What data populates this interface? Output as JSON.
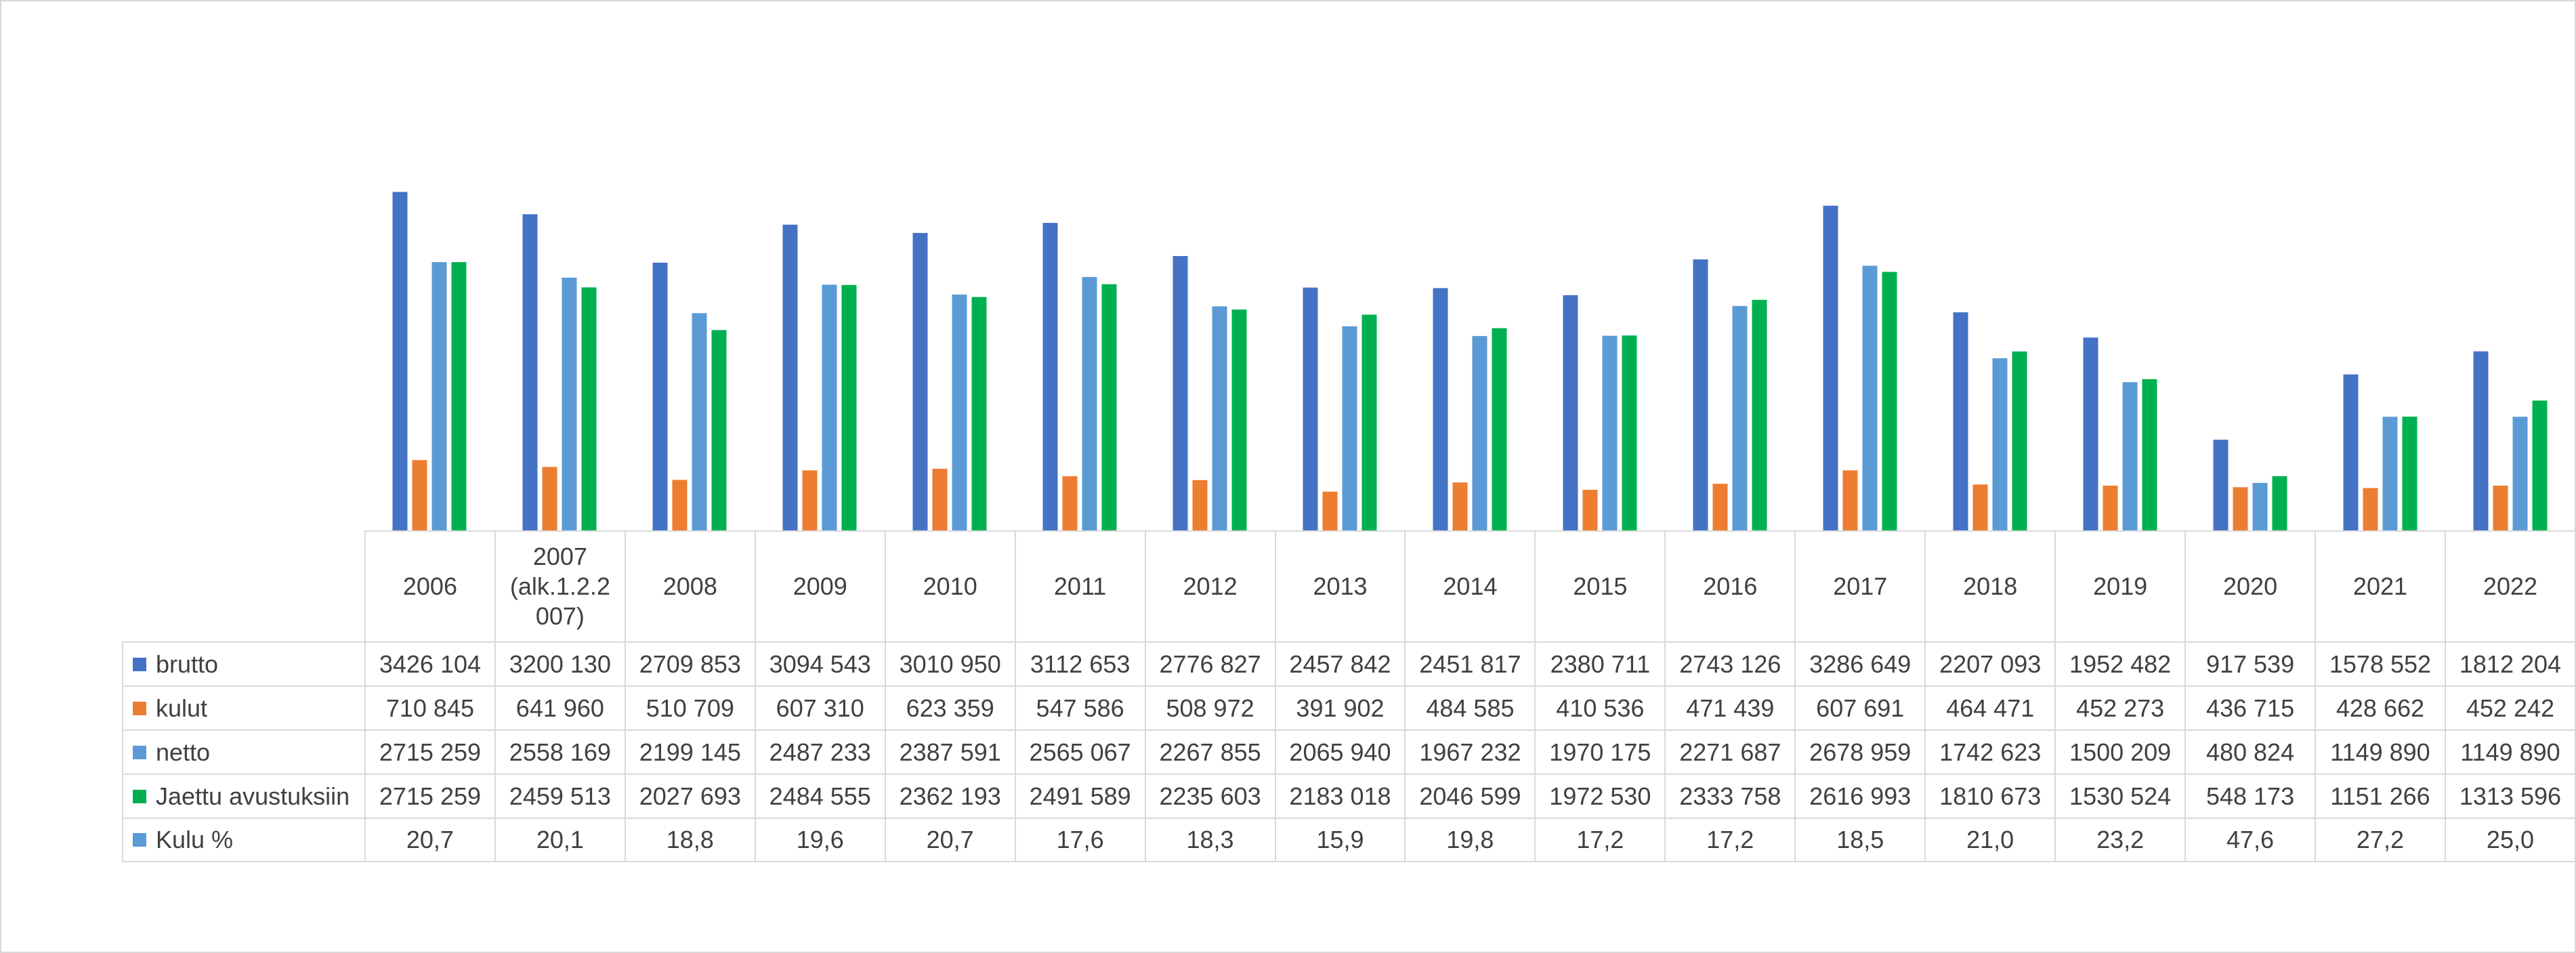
{
  "chart_data": {
    "type": "bar",
    "categories": [
      "2006",
      "2007 (alk.1.2.2007)",
      "2008",
      "2009",
      "2010",
      "2011",
      "2012",
      "2013",
      "2014",
      "2015",
      "2016",
      "2017",
      "2018",
      "2019",
      "2020",
      "2021",
      "2022"
    ],
    "category_labels": [
      "2006",
      "2007\n(alk.1.2.2\n007)",
      "2008",
      "2009",
      "2010",
      "2011",
      "2012",
      "2013",
      "2014",
      "2015",
      "2016",
      "2017",
      "2018",
      "2019",
      "2020",
      "2021",
      "2022"
    ],
    "ylim": [
      0,
      3600000
    ],
    "grid": false,
    "legend": "data-table",
    "series": [
      {
        "name": "brutto",
        "color": "#4472c4",
        "values": [
          3426104,
          3200130,
          2709853,
          3094543,
          3010950,
          3112653,
          2776827,
          2457842,
          2451817,
          2380711,
          2743126,
          3286649,
          2207093,
          1952482,
          917539,
          1578552,
          1812204
        ],
        "labels": [
          "3426 104",
          "3200 130",
          "2709 853",
          "3094 543",
          "3010 950",
          "3112 653",
          "2776 827",
          "2457 842",
          "2451 817",
          "2380 711",
          "2743 126",
          "3286 649",
          "2207 093",
          "1952 482",
          "917 539",
          "1578 552",
          "1812 204"
        ]
      },
      {
        "name": "kulut",
        "color": "#ed7d31",
        "values": [
          710845,
          641960,
          510709,
          607310,
          623359,
          547586,
          508972,
          391902,
          484585,
          410536,
          471439,
          607691,
          464471,
          452273,
          436715,
          428662,
          452242
        ],
        "labels": [
          "710 845",
          "641 960",
          "510 709",
          "607 310",
          "623 359",
          "547 586",
          "508 972",
          "391 902",
          "484 585",
          "410 536",
          "471 439",
          "607 691",
          "464 471",
          "452 273",
          "436 715",
          "428 662",
          "452 242"
        ]
      },
      {
        "name": "netto",
        "color": "#5b9bd5",
        "values": [
          2715259,
          2558169,
          2199145,
          2487233,
          2387591,
          2565067,
          2267855,
          2065940,
          1967232,
          1970175,
          2271687,
          2678959,
          1742623,
          1500209,
          480824,
          1149890,
          1149890
        ],
        "labels": [
          "2715 259",
          "2558 169",
          "2199 145",
          "2487 233",
          "2387 591",
          "2565 067",
          "2267 855",
          "2065 940",
          "1967 232",
          "1970 175",
          "2271 687",
          "2678 959",
          "1742 623",
          "1500 209",
          "480 824",
          "1149 890",
          "1149 890"
        ]
      },
      {
        "name": "Jaettu avustuksiin",
        "color": "#00b050",
        "values": [
          2715259,
          2459513,
          2027693,
          2484555,
          2362193,
          2491589,
          2235603,
          2183018,
          2046599,
          1972530,
          2333758,
          2616993,
          1810673,
          1530524,
          548173,
          1151266,
          1313596
        ],
        "labels": [
          "2715 259",
          "2459 513",
          "2027 693",
          "2484 555",
          "2362 193",
          "2491 589",
          "2235 603",
          "2183 018",
          "2046 599",
          "1972 530",
          "2333 758",
          "2616 993",
          "1810 673",
          "1530 524",
          "548 173",
          "1151 266",
          "1313 596"
        ]
      }
    ],
    "table_rows": [
      {
        "name": "Kulu %",
        "color": "#5b9bd5",
        "labels": [
          "20,7",
          "20,1",
          "18,8",
          "19,6",
          "20,7",
          "17,6",
          "18,3",
          "15,9",
          "19,8",
          "17,2",
          "17,2",
          "18,5",
          "21,0",
          "23,2",
          "47,6",
          "27,2",
          "25,0"
        ]
      }
    ]
  }
}
